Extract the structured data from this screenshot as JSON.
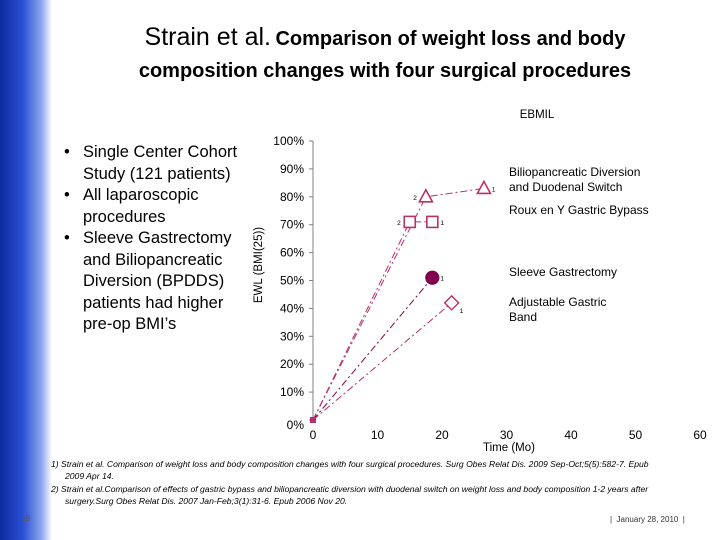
{
  "slide": {
    "title_author": "Strain et al.",
    "title_part1": "Comparison of weight loss and body",
    "title_part2": "composition changes with four surgical procedures",
    "bullets": [
      "Single Center Cohort Study (121 patients)",
      "All laparoscopic procedures",
      "Sleeve Gastrectomy and Biliopancreatic Diversion (BPDDS) patients had higher pre-op BMI’s"
    ],
    "references": [
      "1) Strain et al. Comparison of weight loss and body composition changes with four surgical procedures. Surg Obes Relat Dis. 2009 Sep-Oct;5(5):582-7. Epub 2009 Apr 14.",
      "2) Strain et al.Comparison of effects of gastric bypass and biliopancreatic diversion with duodenal switch on weight loss and body composition 1-2 years after surgery.Surg Obes Relat Dis. 2007 Jan-Feb;3(1):31-6. Epub 2006 Nov 20."
    ],
    "slide_number": "19",
    "footer_date": "January 28, 2010"
  },
  "chart_data": {
    "type": "line",
    "title": "EBMIL",
    "xlabel": "Time (Mo)",
    "ylabel": "EWL (BMI(25))",
    "xlim": [
      0,
      60
    ],
    "ylim": [
      0,
      100
    ],
    "x_ticks": [
      0,
      10,
      20,
      30,
      40,
      50,
      60
    ],
    "y_ticks": [
      0,
      10,
      20,
      30,
      40,
      50,
      60,
      70,
      80,
      90,
      100
    ],
    "y_tick_labels": [
      "0%",
      "10%",
      "20%",
      "30%",
      "40%",
      "50%",
      "60%",
      "70%",
      "80%",
      "90%",
      "100%"
    ],
    "grid": false,
    "series": [
      {
        "name": "Biliopancreatic Diversion and Duodenal Switch",
        "label_lines": [
          "Biliopancreatic Diversion",
          "and Duodenal Switch"
        ],
        "marker": "triangle",
        "filled": false,
        "color": "#b5306e",
        "x": [
          0,
          17.5,
          26.5
        ],
        "y": [
          0,
          80,
          83
        ],
        "point_labels": [
          "",
          "2",
          "1"
        ]
      },
      {
        "name": "Roux en Y Gastric Bypass",
        "label_lines": [
          "Roux en Y Gastric Bypass"
        ],
        "marker": "square",
        "filled": false,
        "color": "#b5306e",
        "x": [
          0,
          15,
          18.5
        ],
        "y": [
          0,
          71,
          71
        ],
        "point_labels": [
          "",
          "2",
          "1"
        ]
      },
      {
        "name": "Sleeve Gastrectomy",
        "label_lines": [
          "Sleeve Gastrectomy"
        ],
        "marker": "circle",
        "filled": true,
        "color": "#80004b",
        "x": [
          0,
          18.5
        ],
        "y": [
          0,
          51
        ],
        "point_labels": [
          "",
          "1"
        ]
      },
      {
        "name": "Adjustable Gastric Band",
        "label_lines": [
          "Adjustable Gastric",
          "Band"
        ],
        "marker": "diamond",
        "filled": false,
        "color": "#b5306e",
        "x": [
          0,
          21.5
        ],
        "y": [
          0,
          42
        ],
        "point_labels": [
          "",
          "1"
        ]
      }
    ]
  }
}
